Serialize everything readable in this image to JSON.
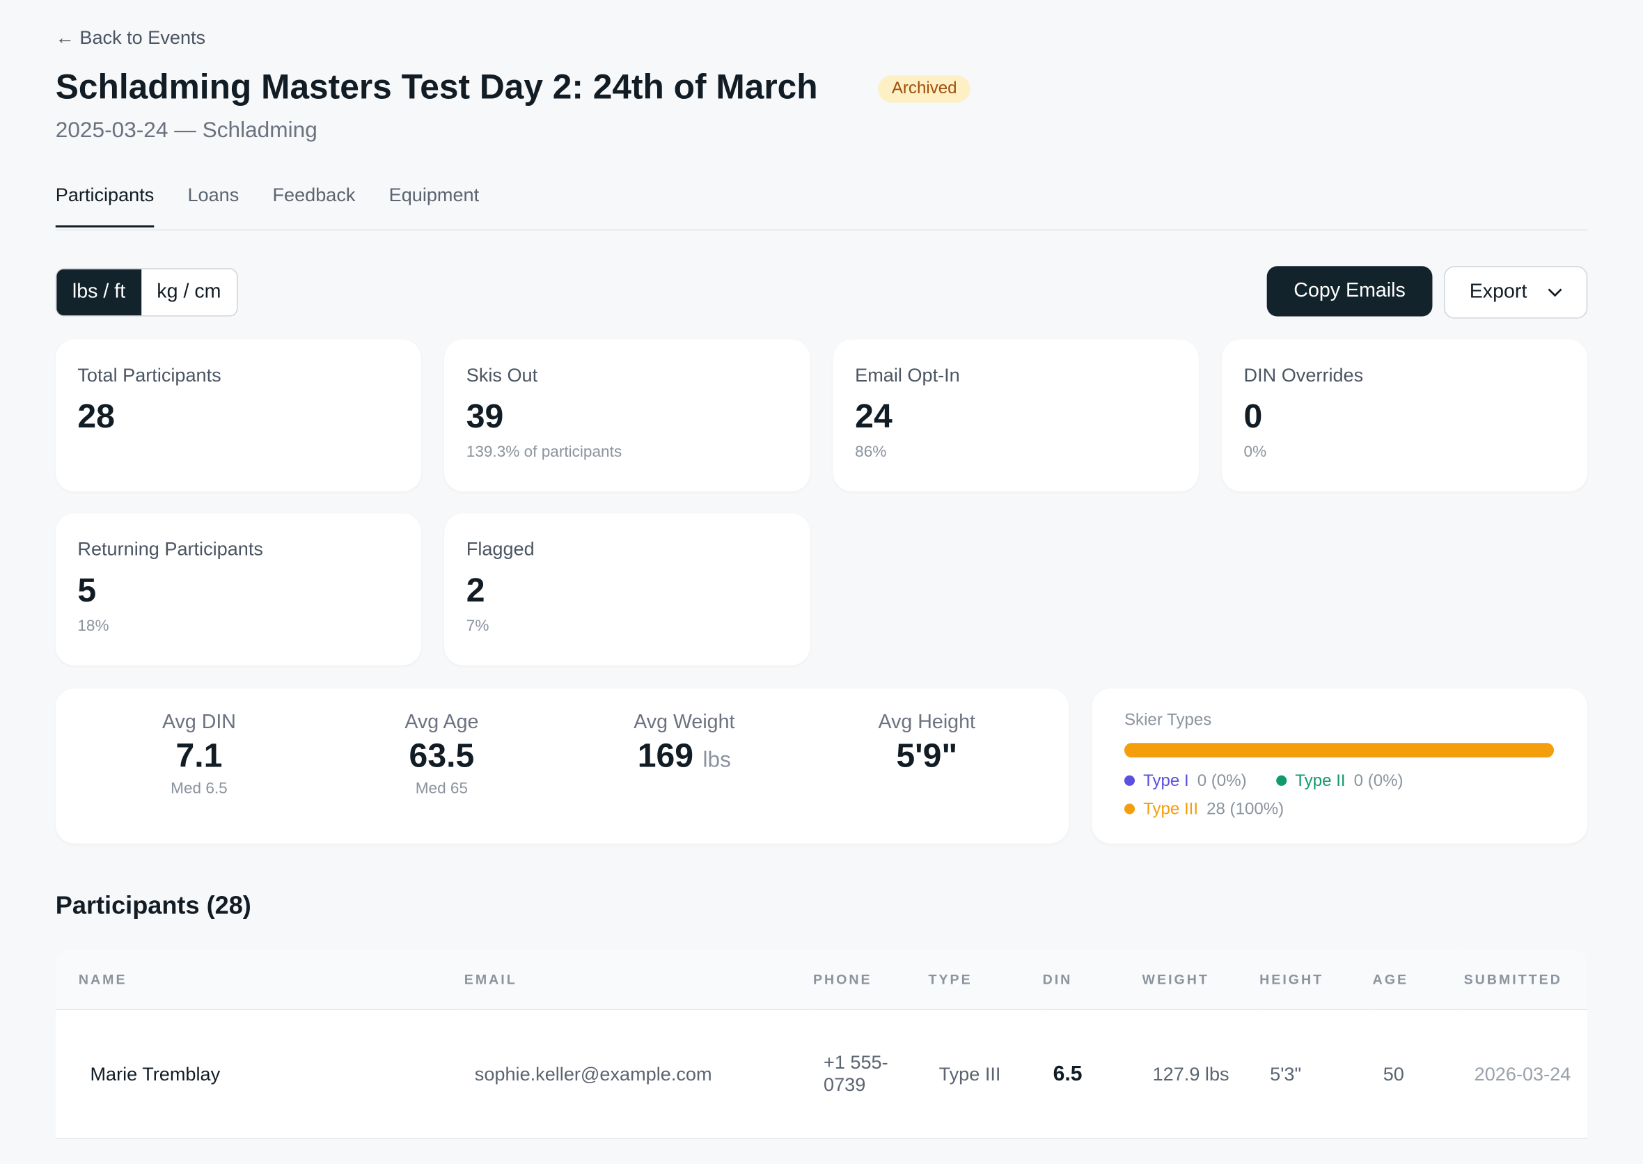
{
  "header": {
    "back": "← Back to Events",
    "title": "Schladming Masters Test Day 2: 24th of March",
    "badge": "Archived",
    "subtitle": "2025-03-24 — Schladming"
  },
  "tabs": [
    "Participants",
    "Loans",
    "Feedback",
    "Equipment"
  ],
  "units": [
    "lbs / ft",
    "kg / cm"
  ],
  "actions": {
    "copy": "Copy Emails",
    "export": "Export"
  },
  "stats": [
    {
      "label": "Total Participants",
      "value": "28"
    },
    {
      "label": "Skis Out",
      "value": "39",
      "note": "139.3% of participants"
    },
    {
      "label": "Email Opt-In",
      "value": "24",
      "note": "86%"
    },
    {
      "label": "DIN Overrides",
      "value": "0",
      "note": "0%"
    },
    {
      "label": "Returning Participants",
      "value": "5",
      "note": "18%"
    },
    {
      "label": "Flagged",
      "value": "2",
      "note": "7%"
    }
  ],
  "averages": [
    {
      "label": "Avg DIN",
      "value": "7.1",
      "note": "Med 6.5"
    },
    {
      "label": "Avg Age",
      "value": "63.5",
      "note": "Med 65"
    },
    {
      "label": "Avg Weight",
      "value": "169",
      "unit": "lbs"
    },
    {
      "label": "Avg Height",
      "value": "5'9\""
    }
  ],
  "skier_types": {
    "title": "Skier Types",
    "types": [
      {
        "name": "Type I",
        "count": 0,
        "label": "0 (0%)",
        "color": "#5b4fe0"
      },
      {
        "name": "Type II",
        "count": 0,
        "label": "0 (0%)",
        "color": "#119a6e"
      },
      {
        "name": "Type III",
        "count": 28,
        "label": "28 (100%)",
        "color": "#f59e0b"
      }
    ]
  },
  "table": {
    "title": "Participants (28)",
    "columns": [
      "NAME",
      "EMAIL",
      "PHONE",
      "TYPE",
      "DIN",
      "WEIGHT",
      "HEIGHT",
      "AGE",
      "SUBMITTED"
    ],
    "rows": [
      [
        "Marie Tremblay",
        "sophie.keller@example.com",
        "+1 555-0739",
        "Type III",
        "6.5",
        "127.9 lbs",
        "5'3\"",
        "50",
        "2026-03-24"
      ]
    ]
  }
}
